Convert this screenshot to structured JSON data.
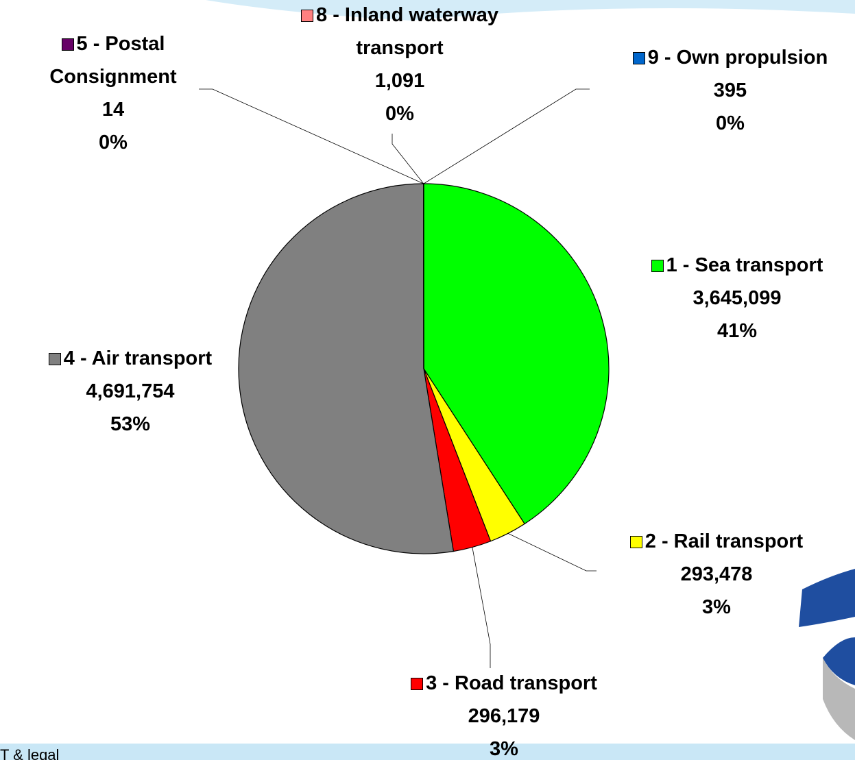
{
  "chart_data": {
    "type": "pie",
    "categories": [
      "1 - Sea transport",
      "2 - Rail transport",
      "3 - Road transport",
      "4 - Air transport",
      "5 - Postal Consignment",
      "8 - Inland waterway transport",
      "9 - Own propulsion"
    ],
    "values": [
      3645099,
      293478,
      296179,
      4691754,
      14,
      1091,
      395
    ],
    "value_labels": [
      "3,645,099",
      "293,478",
      "296,179",
      "4,691,754",
      "14",
      "1,091",
      "395"
    ],
    "percents": [
      41,
      3,
      3,
      53,
      0,
      0,
      0
    ],
    "percent_labels": [
      "41%",
      "3%",
      "3%",
      "53%",
      "0%",
      "0%",
      "0%"
    ],
    "colors": [
      "#00ff00",
      "#ffff00",
      "#ff0000",
      "#808080",
      "#660066",
      "#ff8080",
      "#0066cc"
    ]
  },
  "footer": {
    "text": "T & legal"
  }
}
